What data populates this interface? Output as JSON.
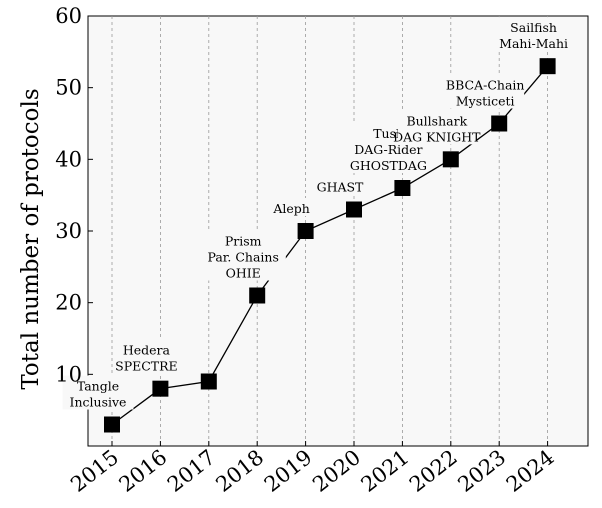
{
  "chart_data": {
    "type": "line",
    "x": [
      "2015",
      "2016",
      "2017",
      "2018",
      "2019",
      "2020",
      "2021",
      "2022",
      "2023",
      "2024"
    ],
    "values": [
      3,
      8,
      9,
      21,
      30,
      33,
      36,
      40,
      45,
      53
    ],
    "ylabel": "Total number of protocols",
    "xlabel": "",
    "title": "",
    "ylim": [
      0,
      60
    ],
    "yticks": [
      10,
      20,
      30,
      40,
      50,
      60
    ],
    "grid": "vertical-dashed",
    "annotations": [
      {
        "x": "2015",
        "lines": [
          "Tangle",
          "Inclusive"
        ]
      },
      {
        "x": "2016",
        "lines": [
          "Hedera",
          "SPECTRE"
        ]
      },
      {
        "x": "2018",
        "lines": [
          "Prism",
          "Par. Chains",
          "OHIE"
        ]
      },
      {
        "x": "2019",
        "lines": [
          "Aleph"
        ]
      },
      {
        "x": "2020",
        "lines": [
          "GHAST"
        ]
      },
      {
        "x": "2021",
        "lines": [
          "Tusk",
          "DAG-Rider",
          "GHOSTDAG"
        ]
      },
      {
        "x": "2022",
        "lines": [
          "Bullshark",
          "DAG KNIGHT"
        ]
      },
      {
        "x": "2023",
        "lines": [
          "BBCA-Chain",
          "Mysticeti"
        ]
      },
      {
        "x": "2024",
        "lines": [
          "Sailfish",
          "Mahi-Mahi"
        ]
      }
    ]
  }
}
